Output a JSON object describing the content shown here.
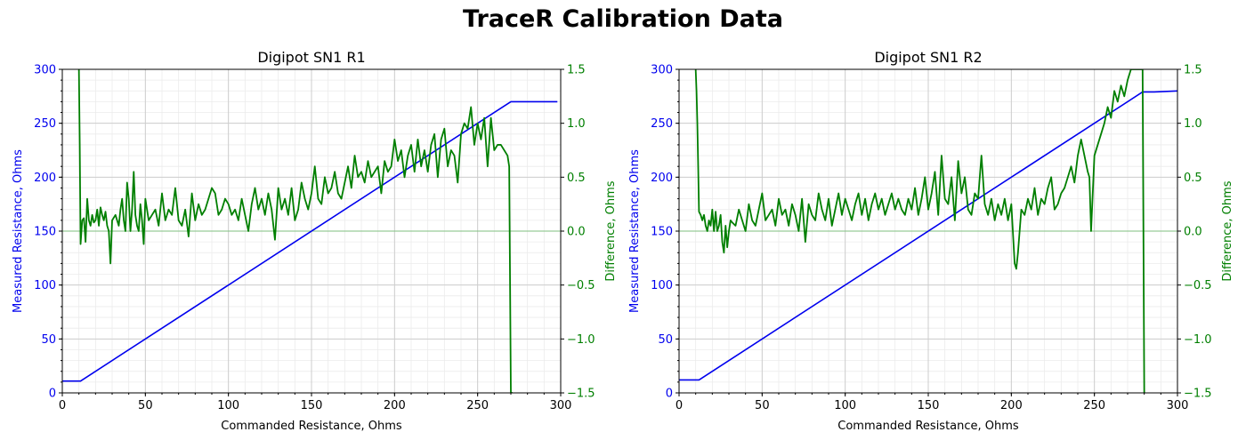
{
  "figure": {
    "suptitle": "TraceR Calibration Data"
  },
  "colors": {
    "measured": "#0000ee",
    "difference": "#007f00",
    "zero_line": "#7fbf7f",
    "grid_major": "#cccccc",
    "grid_minor": "#ebebeb"
  },
  "chart_data": [
    {
      "type": "line",
      "title": "Digipot SN1 R1",
      "xlabel": "Commanded Resistance, Ohms",
      "ylabel": "Measured Resistance, Ohms",
      "y2label": "Difference, Ohms",
      "xlim": [
        0,
        300
      ],
      "ylim": [
        0,
        300
      ],
      "y2lim": [
        -1.5,
        1.5
      ],
      "xticks": [
        "0",
        "50",
        "100",
        "150",
        "200",
        "250",
        "300"
      ],
      "yticks": [
        "0",
        "50",
        "100",
        "150",
        "200",
        "250",
        "300"
      ],
      "y2ticks": [
        "−1.5",
        "−1.0",
        "−0.5",
        "0.0",
        "0.5",
        "1.0",
        "1.5"
      ],
      "grid": true,
      "zero_line": 0,
      "series": [
        {
          "role": "measured",
          "axis": "left",
          "x": [
            0,
            11,
            270,
            298
          ],
          "y": [
            11,
            11,
            270,
            270
          ]
        },
        {
          "role": "difference",
          "axis": "right",
          "x": [
            10,
            10.5,
            11,
            12,
            13,
            14,
            15,
            16,
            17,
            18,
            19,
            20,
            21,
            22,
            23,
            24,
            25,
            26,
            27,
            28,
            29,
            30,
            32,
            34,
            35,
            36,
            37,
            38,
            39,
            40,
            41,
            42,
            43,
            44,
            45,
            46,
            47,
            48,
            49,
            50,
            52,
            54,
            56,
            58,
            60,
            62,
            64,
            66,
            68,
            70,
            72,
            74,
            76,
            78,
            80,
            82,
            84,
            86,
            88,
            90,
            92,
            94,
            96,
            98,
            100,
            102,
            104,
            106,
            108,
            110,
            112,
            114,
            116,
            118,
            120,
            122,
            124,
            126,
            128,
            130,
            132,
            134,
            136,
            138,
            140,
            142,
            144,
            146,
            148,
            150,
            152,
            154,
            156,
            158,
            160,
            162,
            164,
            166,
            168,
            170,
            172,
            174,
            176,
            178,
            180,
            182,
            184,
            186,
            188,
            190,
            192,
            194,
            196,
            198,
            200,
            202,
            204,
            206,
            208,
            210,
            212,
            214,
            216,
            218,
            220,
            222,
            224,
            226,
            228,
            230,
            232,
            234,
            236,
            238,
            240,
            242,
            244,
            246,
            248,
            250,
            252,
            254,
            256,
            258,
            260,
            262,
            264,
            266,
            268,
            269,
            270,
            271
          ],
          "y": [
            1.5,
            0.8,
            -0.12,
            0.1,
            0.12,
            -0.1,
            0.3,
            0.1,
            0.05,
            0.15,
            0.08,
            0.1,
            0.2,
            0.05,
            0.22,
            0.15,
            0.1,
            0.18,
            0.05,
            0.0,
            -0.3,
            0.1,
            0.15,
            0.05,
            0.2,
            0.3,
            0.1,
            0.0,
            0.45,
            0.3,
            0.0,
            0.2,
            0.55,
            0.15,
            0.05,
            0.0,
            0.25,
            0.1,
            -0.12,
            0.3,
            0.1,
            0.15,
            0.2,
            0.05,
            0.35,
            0.1,
            0.2,
            0.15,
            0.4,
            0.1,
            0.05,
            0.2,
            -0.05,
            0.35,
            0.1,
            0.25,
            0.15,
            0.2,
            0.3,
            0.4,
            0.35,
            0.15,
            0.2,
            0.3,
            0.25,
            0.15,
            0.2,
            0.1,
            0.3,
            0.15,
            0.0,
            0.25,
            0.4,
            0.2,
            0.3,
            0.15,
            0.35,
            0.2,
            -0.08,
            0.4,
            0.2,
            0.3,
            0.15,
            0.4,
            0.1,
            0.2,
            0.45,
            0.3,
            0.2,
            0.35,
            0.6,
            0.3,
            0.25,
            0.5,
            0.35,
            0.4,
            0.55,
            0.35,
            0.3,
            0.45,
            0.6,
            0.4,
            0.7,
            0.5,
            0.55,
            0.45,
            0.65,
            0.5,
            0.55,
            0.6,
            0.35,
            0.65,
            0.55,
            0.6,
            0.85,
            0.65,
            0.75,
            0.5,
            0.7,
            0.8,
            0.55,
            0.85,
            0.6,
            0.75,
            0.55,
            0.8,
            0.9,
            0.5,
            0.85,
            0.95,
            0.6,
            0.75,
            0.7,
            0.45,
            0.9,
            1.0,
            0.95,
            1.15,
            0.8,
            1.0,
            0.85,
            1.05,
            0.6,
            1.05,
            0.75,
            0.8,
            0.8,
            0.75,
            0.7,
            0.6,
            -1.5,
            -1.5
          ]
        }
      ]
    },
    {
      "type": "line",
      "title": "Digipot SN1 R2",
      "xlabel": "Commanded Resistance, Ohms",
      "ylabel": "Measured Resistance, Ohms",
      "y2label": "Difference, Ohms",
      "xlim": [
        0,
        300
      ],
      "ylim": [
        0,
        300
      ],
      "y2lim": [
        -1.5,
        1.5
      ],
      "xticks": [
        "0",
        "50",
        "100",
        "150",
        "200",
        "250",
        "300"
      ],
      "yticks": [
        "0",
        "50",
        "100",
        "150",
        "200",
        "250",
        "300"
      ],
      "y2ticks": [
        "−1.5",
        "−1.0",
        "−0.5",
        "0.0",
        "0.5",
        "1.0",
        "1.5"
      ],
      "grid": true,
      "zero_line": 0,
      "series": [
        {
          "role": "measured",
          "axis": "left",
          "x": [
            0,
            12,
            279,
            286,
            300
          ],
          "y": [
            12,
            12,
            279,
            279,
            280
          ]
        },
        {
          "role": "difference",
          "axis": "right",
          "x": [
            10,
            10.5,
            11,
            11.5,
            12,
            13,
            14,
            15,
            16,
            17,
            18,
            19,
            20,
            21,
            22,
            23,
            24,
            25,
            26,
            27,
            28,
            29,
            30,
            31,
            32,
            34,
            36,
            38,
            40,
            42,
            44,
            46,
            48,
            50,
            52,
            54,
            56,
            58,
            60,
            62,
            64,
            66,
            68,
            70,
            72,
            74,
            76,
            78,
            80,
            82,
            84,
            86,
            88,
            90,
            92,
            94,
            96,
            98,
            100,
            102,
            104,
            106,
            108,
            110,
            112,
            114,
            116,
            118,
            120,
            122,
            124,
            126,
            128,
            130,
            132,
            134,
            136,
            138,
            140,
            142,
            144,
            146,
            148,
            150,
            152,
            154,
            156,
            158,
            160,
            162,
            164,
            166,
            168,
            170,
            172,
            174,
            176,
            178,
            180,
            182,
            184,
            186,
            188,
            190,
            192,
            194,
            196,
            198,
            200,
            202,
            203,
            204,
            206,
            208,
            210,
            212,
            214,
            216,
            218,
            220,
            222,
            224,
            226,
            228,
            230,
            232,
            234,
            236,
            238,
            240,
            242,
            244,
            246,
            247,
            248,
            250,
            252,
            254,
            256,
            258,
            260,
            262,
            264,
            266,
            268,
            270,
            272,
            274,
            276,
            278,
            279,
            280
          ],
          "y": [
            1.5,
            1.3,
            1.0,
            0.6,
            0.18,
            0.15,
            0.1,
            0.15,
            0.05,
            0.0,
            0.1,
            0.05,
            0.2,
            0.0,
            0.18,
            0.0,
            0.05,
            0.15,
            -0.1,
            -0.2,
            0.05,
            -0.15,
            0.0,
            0.1,
            0.08,
            0.05,
            0.2,
            0.1,
            0.0,
            0.25,
            0.1,
            0.05,
            0.2,
            0.35,
            0.1,
            0.15,
            0.2,
            0.05,
            0.3,
            0.15,
            0.2,
            0.05,
            0.25,
            0.15,
            0.0,
            0.3,
            -0.1,
            0.25,
            0.15,
            0.1,
            0.35,
            0.2,
            0.1,
            0.3,
            0.05,
            0.2,
            0.35,
            0.15,
            0.3,
            0.2,
            0.1,
            0.25,
            0.35,
            0.15,
            0.3,
            0.1,
            0.25,
            0.35,
            0.2,
            0.3,
            0.15,
            0.25,
            0.35,
            0.2,
            0.3,
            0.2,
            0.15,
            0.3,
            0.2,
            0.4,
            0.15,
            0.3,
            0.5,
            0.2,
            0.35,
            0.55,
            0.15,
            0.7,
            0.3,
            0.25,
            0.5,
            0.1,
            0.65,
            0.35,
            0.5,
            0.2,
            0.15,
            0.35,
            0.3,
            0.7,
            0.25,
            0.15,
            0.3,
            0.1,
            0.25,
            0.15,
            0.3,
            0.1,
            0.25,
            -0.3,
            -0.35,
            -0.2,
            0.2,
            0.15,
            0.3,
            0.2,
            0.4,
            0.15,
            0.3,
            0.25,
            0.4,
            0.5,
            0.2,
            0.25,
            0.35,
            0.4,
            0.5,
            0.6,
            0.45,
            0.7,
            0.85,
            0.7,
            0.55,
            0.5,
            0.0,
            0.7,
            0.8,
            0.9,
            1.0,
            1.15,
            1.05,
            1.3,
            1.2,
            1.35,
            1.25,
            1.4,
            1.5,
            1.5,
            1.5,
            1.5,
            1.5,
            -1.5
          ]
        }
      ]
    }
  ]
}
